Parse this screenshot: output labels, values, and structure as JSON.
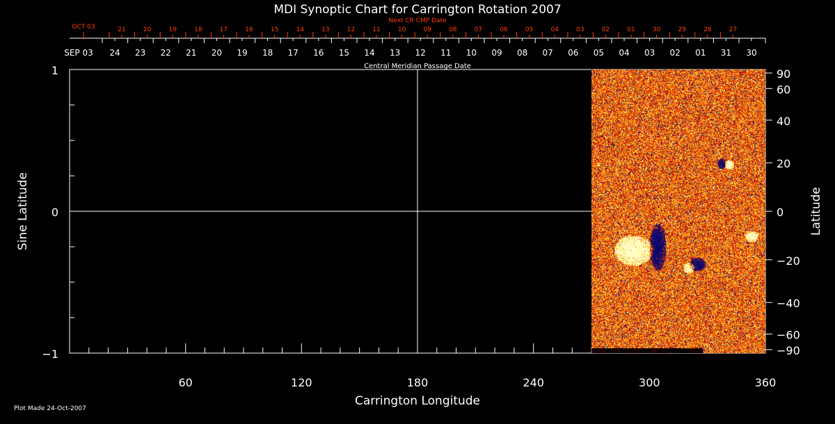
{
  "chart_data": {
    "type": "heatmap",
    "title": "MDI Synoptic Chart for Carrington Rotation 2007",
    "xlabel": "Carrington Longitude",
    "ylabel": "Sine Latitude",
    "y2label": "Latitude",
    "xlim": [
      0,
      360
    ],
    "ylim": [
      -1,
      1
    ],
    "xticks": [
      60,
      120,
      180,
      240,
      300,
      360
    ],
    "yticks": [
      {
        "v": 1,
        "label": "1"
      },
      {
        "v": 0,
        "label": "0"
      },
      {
        "v": -1,
        "label": "−1"
      }
    ],
    "y2ticks": [
      90,
      60,
      40,
      20,
      0,
      -20,
      -40,
      -60,
      -90
    ],
    "y2tick_labels": [
      "90",
      "60",
      "40",
      "20",
      "0",
      "−20",
      "−40",
      "−60",
      "−90"
    ],
    "data_coverage_longitude": [
      270,
      360
    ],
    "grid_lines": {
      "longitude": 180,
      "sine_latitude": 0
    },
    "colors": {
      "positive": "#ffffff",
      "negative": "#000060",
      "background_field": "#e83000",
      "axes": "#ffffff",
      "next_cr": "#ff4000"
    },
    "top_axis": {
      "title": "Central Meridian Passage Date",
      "start_label": "SEP 03",
      "labels": [
        "24",
        "23",
        "22",
        "21",
        "20",
        "19",
        "18",
        "17",
        "16",
        "15",
        "14",
        "13",
        "12",
        "11",
        "10",
        "09",
        "08",
        "07",
        "06",
        "05",
        "04",
        "03",
        "02",
        "01",
        "31",
        "30"
      ]
    },
    "next_cr_axis": {
      "title": "Next CR CMP Date",
      "start_label": "OCT 03",
      "labels": [
        "21",
        "20",
        "19",
        "18",
        "17",
        "16",
        "15",
        "14",
        "13",
        "12",
        "11",
        "10",
        "09",
        "08",
        "07",
        "06",
        "05",
        "04",
        "03",
        "02",
        "01",
        "30",
        "29",
        "28",
        "27"
      ]
    }
  },
  "footer": {
    "plot_made": "Plot Made 24-Oct-2007"
  }
}
